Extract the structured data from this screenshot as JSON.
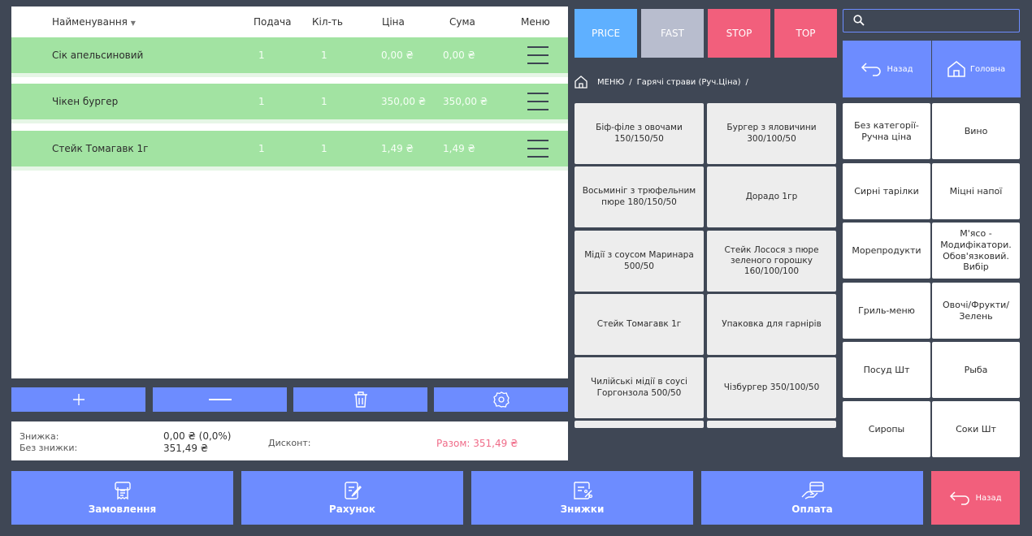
{
  "order": {
    "columns": {
      "name": "Найменування",
      "serve": "Подача",
      "qty": "Кіл-ть",
      "price": "Ціна",
      "sum": "Сума",
      "menu": "Меню"
    },
    "rows": [
      {
        "name": "Сік апельсиновий",
        "serve": "1",
        "qty": "1",
        "price": "0,00 ₴",
        "sum": "0,00 ₴"
      },
      {
        "name": "Чікен бургер",
        "serve": "1",
        "qty": "1",
        "price": "350,00 ₴",
        "sum": "350,00 ₴"
      },
      {
        "name": "Стейк Томагавк 1г",
        "serve": "1",
        "qty": "1",
        "price": "1,49 ₴",
        "sum": "1,49 ₴"
      }
    ]
  },
  "totals": {
    "discount_label": "Знижка:",
    "discount_value": "0,00 ₴ (0,0%)",
    "no_discount_label": "Без знижки:",
    "no_discount_value": "351,49 ₴",
    "discount_card_label": "Дисконт:",
    "total": "Разом: 351,49 ₴"
  },
  "quick_buttons": [
    "PRICE",
    "FAST",
    "STOP",
    "TOP"
  ],
  "breadcrumb": {
    "root": "МЕНЮ",
    "separator": "/",
    "current": "Гарячі страви (Руч.Ціна)",
    "trailing": "/"
  },
  "dishes": [
    "Біф-філе з овочами 150/150/50",
    "Бургер з яловичини 300/100/50",
    "Восьминіг з трюфельним пюре 180/150/50",
    "Дорадо 1гр",
    "Мідії з соусом Маринара 500/50",
    "Стейк Лосося з пюре зеленого горошку 160/100/100",
    "Стейк Томагавк 1г",
    "Упаковка для гарнірів",
    "Чилійські мідії в соусі Горгонзола 500/50",
    "Чізбургер 350/100/50"
  ],
  "nav": {
    "back": "Назад",
    "home": "Головна"
  },
  "categories": [
    "Без категорії-Ручна ціна",
    "Вино",
    "Сирні тарілки",
    "Міцні напої",
    "Морепродукти",
    "М'ясо - Модифікатори. Обов'язковий. Вибір",
    "Гриль-меню",
    "Овочі/Фрукти/ Зелень",
    "Посуд Шт",
    "Рыба",
    "Сиропы",
    "Соки Шт"
  ],
  "bottom_bar": {
    "orders": "Замовлення",
    "bill": "Рахунок",
    "discounts": "Знижки",
    "payment": "Оплата",
    "back": "Назад"
  },
  "icons": {
    "sort": "triangle-down",
    "row_menu": "hamburger",
    "add": "plus",
    "remove": "minus",
    "delete": "trash",
    "settings": "gear",
    "home": "home",
    "back": "arrow-back",
    "search": "magnifier",
    "orders": "receipt",
    "bill": "document-edit",
    "discounts": "percent-tag",
    "payment": "hand-card"
  },
  "colors": {
    "background": "#3f4755",
    "accent": "#6d8cff",
    "row_green": "#a2e3a2",
    "price_button": "#5fb0ff",
    "fast_button": "#b8bdce",
    "stop_button": "#f25f7c",
    "top_button": "#f25f7c",
    "total_text": "#f06b88",
    "back_button": "#f25f7c"
  }
}
